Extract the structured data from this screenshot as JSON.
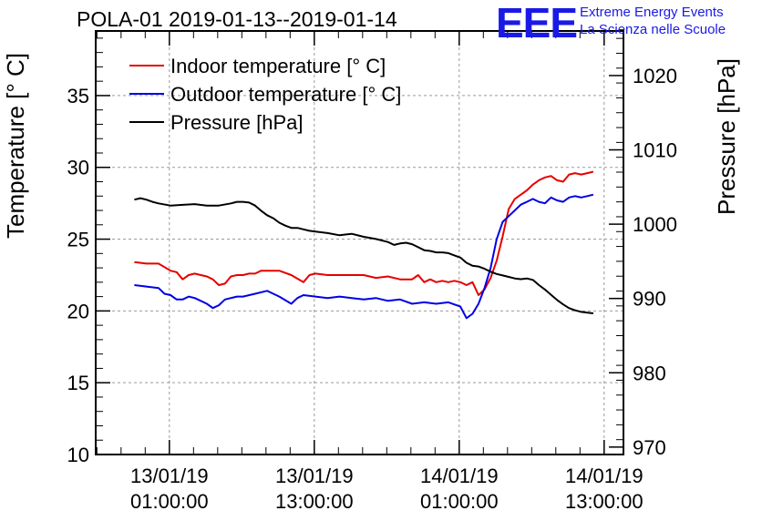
{
  "header": {
    "title": "POLA-01 2019-01-13--2019-01-14",
    "logo_mark": "EEE",
    "logo_line1": "Extreme Energy Events",
    "logo_line2": "La Scienza nelle Scuole"
  },
  "colors": {
    "indoor": "#e60000",
    "outdoor": "#0000e6",
    "pressure": "#000000",
    "logo": "#1a1ae6"
  },
  "chart_data": {
    "type": "line",
    "title": "POLA-01 2019-01-13--2019-01-14",
    "ylabel": "Temperature [° C]",
    "y2label": "Pressure [hPa]",
    "xlabel": "",
    "ylim": [
      10,
      39.5
    ],
    "y2lim": [
      969,
      1026
    ],
    "xlim": [
      -5.1,
      38.6
    ],
    "x_unit": "hours since 13/01/19 00:00",
    "grid": true,
    "legend_position": "top-left",
    "yticks": [
      10,
      15,
      20,
      25,
      30,
      35
    ],
    "y2ticks": [
      970,
      980,
      990,
      1000,
      1010,
      1020
    ],
    "xticks": [
      {
        "x": 1,
        "line1": "13/01/19",
        "line2": "01:00:00"
      },
      {
        "x": 13,
        "line1": "13/01/19",
        "line2": "13:00:00"
      },
      {
        "x": 25,
        "line1": "14/01/19",
        "line2": "01:00:00"
      },
      {
        "x": 37,
        "line1": "14/01/19",
        "line2": "13:00:00"
      }
    ],
    "series": [
      {
        "name": "Indoor temperature [° C]",
        "axis": "left",
        "color": "#e60000",
        "x": [
          -1.9,
          -0.9,
          0.1,
          1.1,
          1.6,
          2.1,
          2.6,
          3.1,
          3.6,
          4.1,
          4.6,
          5.1,
          5.6,
          6.1,
          6.6,
          7.1,
          7.6,
          8.1,
          8.6,
          9.1,
          10.1,
          11.1,
          12.1,
          12.6,
          13.1,
          14.1,
          15.1,
          16.1,
          17.1,
          18.1,
          19.1,
          20.1,
          21.1,
          21.6,
          22.1,
          22.6,
          23.1,
          23.6,
          24.1,
          24.6,
          25.1,
          25.6,
          26.1,
          26.6,
          27.1,
          27.6,
          28.1,
          28.6,
          29.1,
          29.6,
          30.1,
          30.6,
          31.1,
          31.6,
          32.1,
          32.6,
          33.1,
          33.6,
          34.1,
          34.6,
          35.1,
          35.6,
          36.1
        ],
        "values": [
          23.4,
          23.3,
          23.3,
          22.8,
          22.7,
          22.2,
          22.5,
          22.6,
          22.5,
          22.4,
          22.2,
          21.8,
          21.9,
          22.4,
          22.5,
          22.5,
          22.6,
          22.6,
          22.8,
          22.8,
          22.8,
          22.5,
          22.0,
          22.5,
          22.6,
          22.5,
          22.5,
          22.5,
          22.5,
          22.3,
          22.4,
          22.2,
          22.2,
          22.5,
          22.0,
          22.2,
          22.0,
          22.1,
          22.0,
          22.1,
          22.0,
          21.8,
          22.0,
          21.1,
          21.5,
          22.3,
          23.5,
          25.2,
          27.1,
          27.8,
          28.1,
          28.4,
          28.8,
          29.1,
          29.3,
          29.4,
          29.1,
          29.0,
          29.5,
          29.6,
          29.5,
          29.6,
          29.7
        ]
      },
      {
        "name": "Outdoor temperature [° C]",
        "axis": "left",
        "color": "#0000e6",
        "x": [
          -1.9,
          -0.9,
          0.1,
          0.6,
          1.1,
          1.6,
          2.1,
          2.6,
          3.1,
          3.6,
          4.1,
          4.6,
          5.1,
          5.6,
          6.1,
          6.6,
          7.1,
          8.1,
          9.1,
          9.6,
          10.1,
          11.1,
          11.6,
          12.1,
          13.1,
          14.1,
          15.1,
          16.1,
          17.1,
          18.1,
          19.1,
          20.1,
          21.1,
          22.1,
          23.1,
          24.1,
          25.1,
          25.6,
          26.1,
          26.6,
          27.1,
          27.6,
          28.1,
          28.6,
          29.1,
          29.6,
          30.1,
          30.6,
          31.1,
          31.6,
          32.1,
          32.6,
          33.1,
          33.6,
          34.1,
          34.6,
          35.1,
          35.6,
          36.1
        ],
        "values": [
          21.8,
          21.7,
          21.6,
          21.2,
          21.1,
          20.8,
          20.8,
          21.0,
          20.9,
          20.7,
          20.5,
          20.2,
          20.4,
          20.8,
          20.9,
          21.0,
          21.0,
          21.2,
          21.4,
          21.2,
          21.0,
          20.5,
          20.9,
          21.1,
          21.0,
          20.9,
          21.0,
          20.9,
          20.8,
          20.9,
          20.7,
          20.8,
          20.5,
          20.6,
          20.5,
          20.6,
          20.3,
          19.5,
          19.8,
          20.5,
          21.6,
          23.0,
          25.0,
          26.2,
          26.6,
          27.0,
          27.4,
          27.6,
          27.8,
          27.6,
          27.5,
          27.9,
          27.7,
          27.6,
          27.9,
          28.0,
          27.9,
          28.0,
          28.1
        ]
      },
      {
        "name": "Pressure [hPa]",
        "axis": "right",
        "color": "#000000",
        "x": [
          -1.9,
          -1.4,
          -0.9,
          -0.4,
          0.1,
          1.1,
          2.1,
          3.1,
          4.1,
          5.1,
          6.1,
          6.6,
          7.1,
          7.6,
          8.1,
          8.6,
          9.1,
          9.6,
          10.1,
          10.6,
          11.1,
          11.6,
          12.1,
          12.6,
          13.1,
          14.1,
          15.1,
          16.1,
          17.1,
          18.1,
          19.1,
          19.6,
          20.1,
          20.6,
          21.1,
          21.6,
          22.1,
          22.6,
          23.1,
          23.6,
          24.1,
          24.6,
          25.1,
          25.6,
          26.1,
          26.6,
          27.1,
          27.6,
          28.1,
          28.6,
          29.1,
          29.6,
          30.1,
          30.6,
          31.1,
          31.6,
          32.1,
          32.6,
          33.1,
          33.6,
          34.1,
          34.6,
          35.1,
          35.6,
          36.1
        ],
        "values": [
          1003.3,
          1003.5,
          1003.3,
          1003.0,
          1002.8,
          1002.5,
          1002.6,
          1002.7,
          1002.5,
          1002.5,
          1002.8,
          1003.0,
          1003.0,
          1002.9,
          1002.5,
          1001.8,
          1001.2,
          1000.8,
          1000.2,
          999.8,
          999.5,
          999.5,
          999.3,
          999.1,
          999.0,
          998.8,
          998.5,
          998.7,
          998.3,
          998.0,
          997.6,
          997.2,
          997.4,
          997.5,
          997.3,
          996.9,
          996.5,
          996.4,
          996.2,
          996.2,
          996.1,
          995.8,
          995.5,
          994.8,
          994.4,
          994.3,
          994.0,
          993.6,
          993.3,
          993.1,
          992.9,
          992.7,
          992.6,
          992.7,
          992.5,
          991.8,
          991.2,
          990.5,
          989.8,
          989.2,
          988.7,
          988.4,
          988.2,
          988.1,
          988.0
        ]
      }
    ]
  }
}
